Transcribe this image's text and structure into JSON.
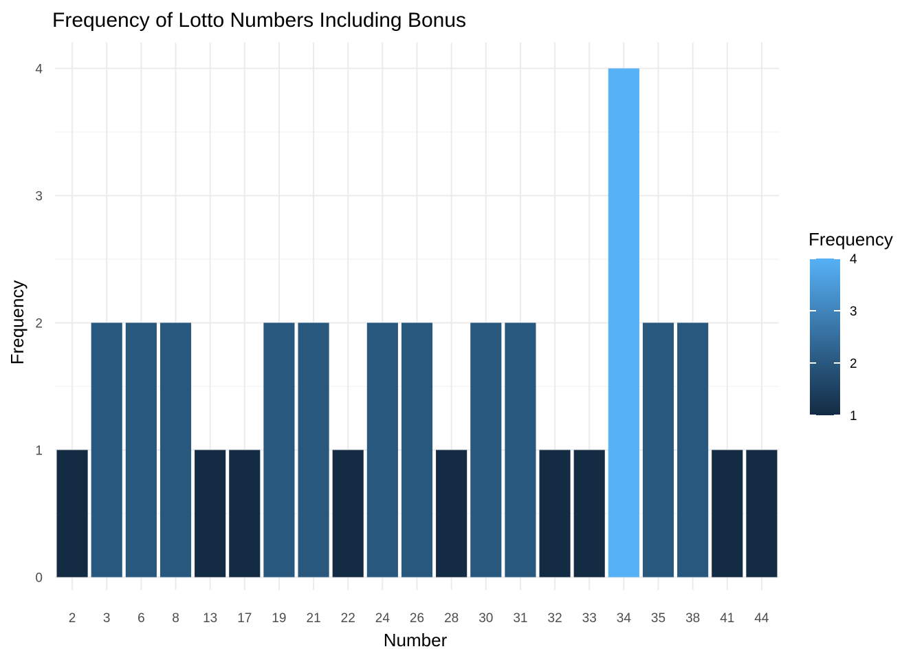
{
  "chart_data": {
    "type": "bar",
    "title": "Frequency of Lotto Numbers Including Bonus",
    "xlabel": "Number",
    "ylabel": "Frequency",
    "categories": [
      "2",
      "3",
      "6",
      "8",
      "13",
      "17",
      "19",
      "21",
      "22",
      "24",
      "26",
      "28",
      "30",
      "31",
      "32",
      "33",
      "34",
      "35",
      "38",
      "41",
      "44"
    ],
    "values": [
      1,
      2,
      2,
      2,
      1,
      1,
      2,
      2,
      1,
      2,
      2,
      1,
      2,
      2,
      1,
      1,
      4,
      2,
      2,
      1,
      1
    ],
    "ylim": [
      0,
      4
    ],
    "yticks": [
      "0",
      "1",
      "2",
      "3",
      "4"
    ],
    "grid": true,
    "legend": {
      "title": "Frequency",
      "placement": "right",
      "ticks": [
        "1",
        "2",
        "3",
        "4"
      ],
      "color_low": "#132B43",
      "color_high": "#56B1F7"
    }
  }
}
